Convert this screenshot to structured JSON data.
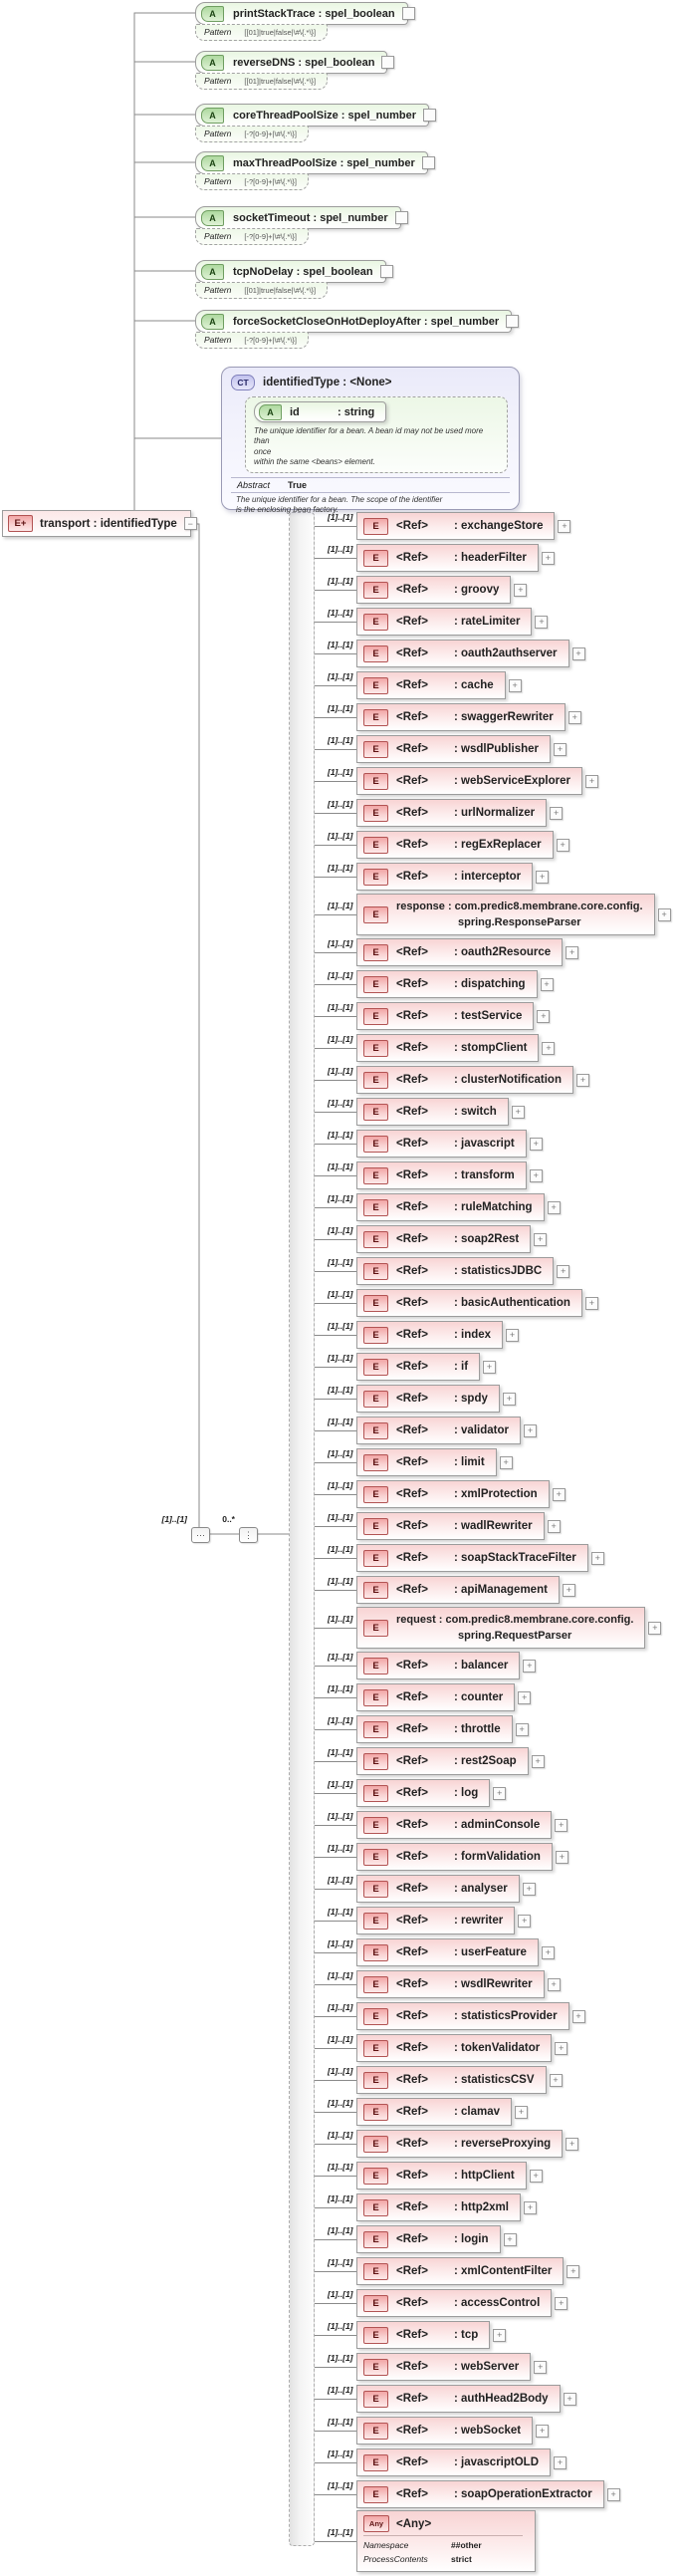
{
  "icons": {
    "attribute": "A",
    "element": "E",
    "root_element": "E+",
    "complex_type": "CT",
    "any": "Any",
    "expand": "+",
    "collapse": "−",
    "sequence_dots": "⋯",
    "choice_dots": "⋮"
  },
  "attributes": [
    {
      "label": "printStackTrace : spel_boolean",
      "facet_label": "Pattern",
      "facet_value": "[[01]|true|false|\\#\\{.*\\}]"
    },
    {
      "label": "reverseDNS : spel_boolean",
      "facet_label": "Pattern",
      "facet_value": "[[01]|true|false|\\#\\{.*\\}]"
    },
    {
      "label": "coreThreadPoolSize : spel_number",
      "facet_label": "Pattern",
      "facet_value": "[-?[0-9]+|\\#\\{.*\\}]"
    },
    {
      "label": "maxThreadPoolSize : spel_number",
      "facet_label": "Pattern",
      "facet_value": "[-?[0-9]+|\\#\\{.*\\}]"
    },
    {
      "label": "socketTimeout : spel_number",
      "facet_label": "Pattern",
      "facet_value": "[-?[0-9]+|\\#\\{.*\\}]"
    },
    {
      "label": "tcpNoDelay : spel_boolean",
      "facet_label": "Pattern",
      "facet_value": "[[01]|true|false|\\#\\{.*\\}]"
    },
    {
      "label": "forceSocketCloseOnHotDeployAfter : spel_number",
      "facet_label": "Pattern",
      "facet_value": "[-?[0-9]+|\\#\\{.*\\}]"
    }
  ],
  "complex_type": {
    "label": "identifiedType : <None>",
    "attribute": {
      "name": "id",
      "type": ": string"
    },
    "annotation": "The unique identifier for a bean. A bean id may not be used more than\nonce\nwithin the same <beans> element.",
    "abstract_label": "Abstract",
    "abstract_value": "True",
    "description": "The unique identifier for a bean. The scope of the identifier\nis the enclosing bean factory."
  },
  "root": {
    "label": "transport : identifiedType"
  },
  "compositor": {
    "sequence_cardinality": "[1]..[1]",
    "choice_cardinality": "0..*"
  },
  "child_cardinality": "[1]..[1]",
  "ref_label": "<Ref>",
  "children": [
    {
      "name": ": exchangeStore"
    },
    {
      "name": ": headerFilter"
    },
    {
      "name": ": groovy"
    },
    {
      "name": ": rateLimiter"
    },
    {
      "name": ": oauth2authserver"
    },
    {
      "name": ": cache"
    },
    {
      "name": ": swaggerRewriter"
    },
    {
      "name": ": wsdlPublisher"
    },
    {
      "name": ": webServiceExplorer"
    },
    {
      "name": ": urlNormalizer"
    },
    {
      "name": ": regExReplacer"
    },
    {
      "name": ": interceptor"
    },
    {
      "parser": true,
      "line1": "response : com.predic8.membrane.core.config.",
      "line2": "spring.ResponseParser"
    },
    {
      "name": ": oauth2Resource"
    },
    {
      "name": ": dispatching"
    },
    {
      "name": ": testService"
    },
    {
      "name": ": stompClient"
    },
    {
      "name": ": clusterNotification"
    },
    {
      "name": ": switch"
    },
    {
      "name": ": javascript"
    },
    {
      "name": ": transform"
    },
    {
      "name": ": ruleMatching"
    },
    {
      "name": ": soap2Rest"
    },
    {
      "name": ": statisticsJDBC"
    },
    {
      "name": ": basicAuthentication"
    },
    {
      "name": ": index"
    },
    {
      "name": ": if"
    },
    {
      "name": ": spdy"
    },
    {
      "name": ": validator"
    },
    {
      "name": ": limit"
    },
    {
      "name": ": xmlProtection"
    },
    {
      "name": ": wadlRewriter"
    },
    {
      "name": ": soapStackTraceFilter"
    },
    {
      "name": ": apiManagement"
    },
    {
      "parser": true,
      "line1": "request  : com.predic8.membrane.core.config.",
      "line2": "spring.RequestParser"
    },
    {
      "name": ": balancer"
    },
    {
      "name": ": counter"
    },
    {
      "name": ": throttle"
    },
    {
      "name": ": rest2Soap"
    },
    {
      "name": ": log"
    },
    {
      "name": ": adminConsole"
    },
    {
      "name": ": formValidation"
    },
    {
      "name": ": analyser"
    },
    {
      "name": ": rewriter"
    },
    {
      "name": ": userFeature"
    },
    {
      "name": ": wsdlRewriter"
    },
    {
      "name": ": statisticsProvider"
    },
    {
      "name": ": tokenValidator"
    },
    {
      "name": ": statisticsCSV"
    },
    {
      "name": ": clamav"
    },
    {
      "name": ": reverseProxying"
    },
    {
      "name": ": httpClient"
    },
    {
      "name": ": http2xml"
    },
    {
      "name": ": login"
    },
    {
      "name": ": xmlContentFilter"
    },
    {
      "name": ": accessControl"
    },
    {
      "name": ": tcp"
    },
    {
      "name": ": webServer"
    },
    {
      "name": ": authHead2Body"
    },
    {
      "name": ": webSocket"
    },
    {
      "name": ": javascriptOLD"
    },
    {
      "name": ": soapOperationExtractor"
    }
  ],
  "any": {
    "label": "<Any>",
    "facets": [
      {
        "label": "Namespace",
        "value": "##other"
      },
      {
        "label": "ProcessContents",
        "value": "strict"
      }
    ]
  }
}
